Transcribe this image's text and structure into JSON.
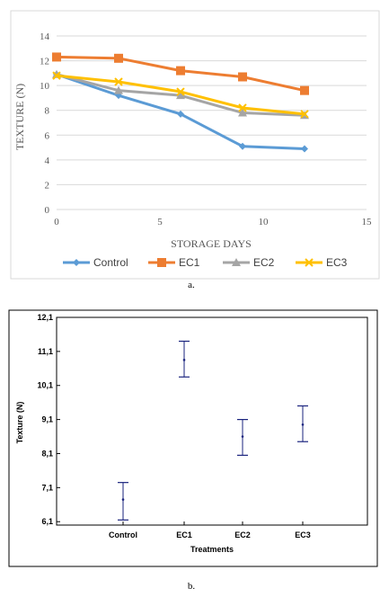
{
  "charts": {
    "a": {
      "caption": "a.",
      "chart_data": {
        "type": "line",
        "xlabel": "STORAGE DAYS",
        "ylabel": "TEXTURE (N)",
        "xlim": [
          0,
          15
        ],
        "ylim": [
          0,
          14
        ],
        "xticks": [
          0,
          5,
          10,
          15
        ],
        "yticks": [
          0,
          2,
          4,
          6,
          8,
          10,
          12,
          14
        ],
        "grid": "horizontal",
        "legend": "bottom",
        "x": [
          0,
          3,
          6,
          9,
          12
        ],
        "series": [
          {
            "name": "Control",
            "color": "#5b9bd5",
            "marker": "diamond",
            "values": [
              10.9,
              9.2,
              7.7,
              5.1,
              4.9
            ]
          },
          {
            "name": "EC1",
            "color": "#ed7d31",
            "marker": "square",
            "values": [
              12.3,
              12.2,
              11.2,
              10.7,
              9.6
            ]
          },
          {
            "name": "EC2",
            "color": "#a5a5a5",
            "marker": "triangle",
            "values": [
              10.9,
              9.6,
              9.2,
              7.8,
              7.6
            ]
          },
          {
            "name": "EC3",
            "color": "#ffc000",
            "marker": "x",
            "values": [
              10.8,
              10.3,
              9.5,
              8.2,
              7.7
            ]
          }
        ]
      }
    },
    "b": {
      "caption": "b.",
      "chart_data": {
        "type": "errorbar",
        "xlabel": "Treatments",
        "ylabel": "Texture (N)",
        "ylim": [
          6.0,
          12.1
        ],
        "yticks": [
          "6,1",
          "7,1",
          "8,1",
          "9,1",
          "10,1",
          "11,1",
          "12,1"
        ],
        "ytick_values": [
          6.1,
          7.1,
          8.1,
          9.1,
          10.1,
          11.1,
          12.1
        ],
        "categories": [
          "Control",
          "EC1",
          "EC2",
          "EC3"
        ],
        "means": [
          6.75,
          10.85,
          8.6,
          8.95
        ],
        "lower": [
          6.15,
          10.35,
          8.05,
          8.45
        ],
        "upper": [
          7.25,
          11.4,
          9.1,
          9.5
        ],
        "color": "#1a237e"
      }
    }
  }
}
